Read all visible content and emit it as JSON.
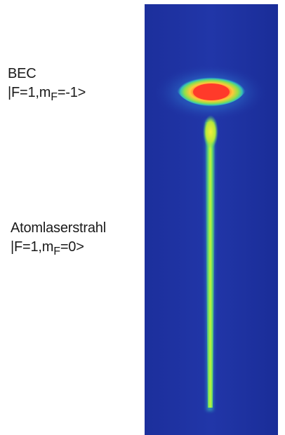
{
  "labels": {
    "bec": {
      "title": "BEC",
      "state_prefix": "|F=1,m",
      "state_sub": "F",
      "state_suffix": "=-1>"
    },
    "beam": {
      "title": "Atomlaserstrahl",
      "state_prefix": "|F=1,m",
      "state_sub": "F",
      "state_suffix": "=0>"
    }
  },
  "colors": {
    "background": "#1a2f9a",
    "condensate_core": "#ff3a2a",
    "condensate_rim": "#ffd23a",
    "beam": "#b8ee2a"
  }
}
